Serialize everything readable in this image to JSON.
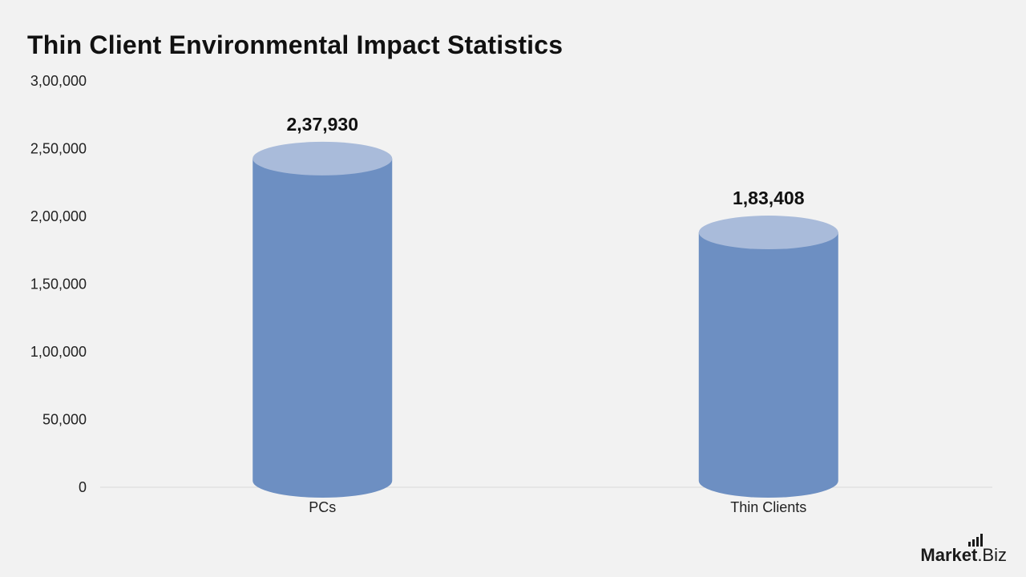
{
  "chart_data": {
    "type": "bar",
    "title": "Thin Client Environmental Impact Statistics",
    "categories": [
      "PCs",
      "Thin Clients"
    ],
    "values": [
      237930,
      183408
    ],
    "value_labels": [
      "2,37,930",
      "1,83,408"
    ],
    "ylim": [
      0,
      300000
    ],
    "y_ticks": [
      0,
      50000,
      100000,
      150000,
      200000,
      250000,
      300000
    ],
    "y_tick_labels": [
      "0",
      "50,000",
      "1,00,000",
      "1,50,000",
      "2,00,000",
      "2,50,000",
      "3,00,000"
    ],
    "xlabel": "",
    "ylabel": "",
    "grid": false,
    "legend": "none",
    "bar_style": "cylinder",
    "colors": {
      "body": "#6d8fc2",
      "top": "#a9bbda",
      "axis": "#d9d9d9",
      "text": "#222222"
    }
  },
  "branding": {
    "bold": "Market",
    "regular": ".Biz"
  }
}
